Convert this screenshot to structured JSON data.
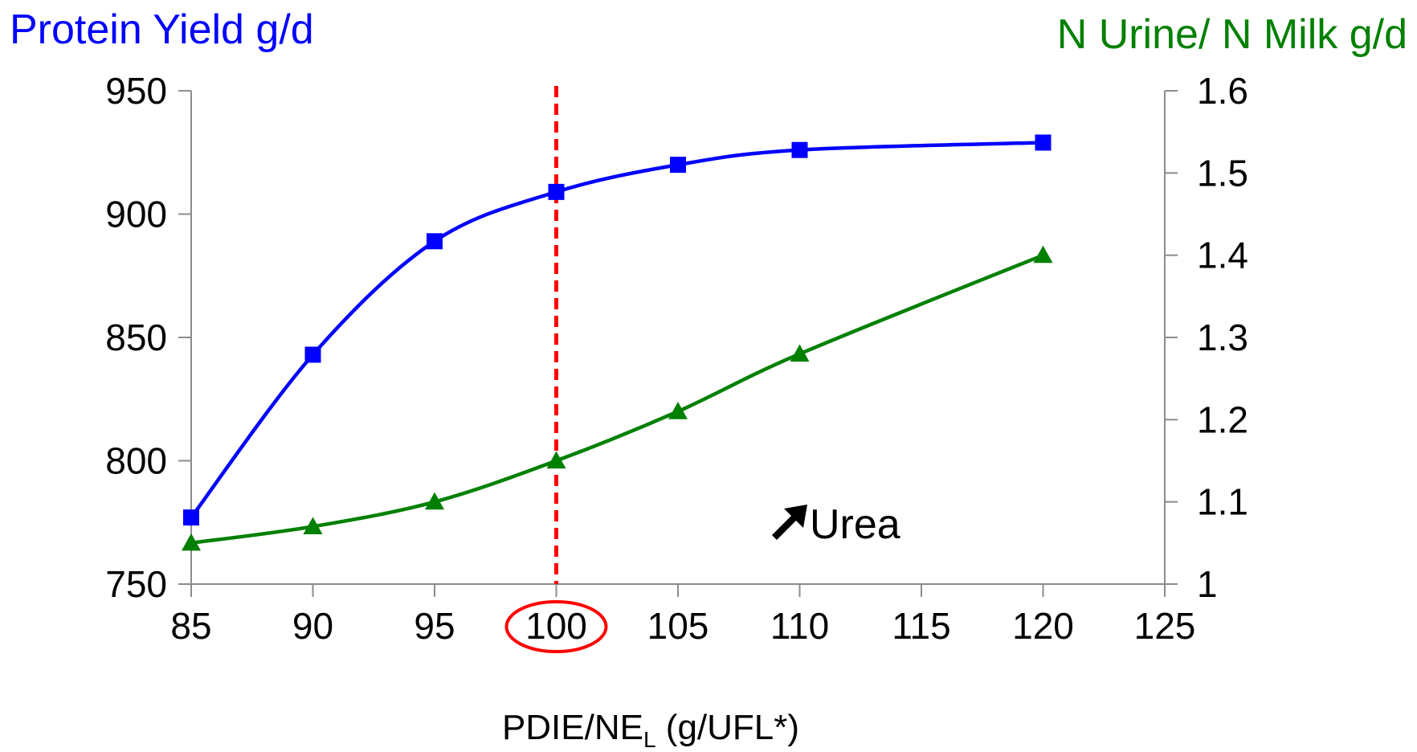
{
  "chart_data": {
    "type": "line",
    "x_values": [
      85,
      90,
      95,
      100,
      105,
      110,
      120
    ],
    "x_ticks": [
      "85",
      "90",
      "95",
      "100",
      "105",
      "110",
      "115",
      "120",
      "125"
    ],
    "xlim": [
      85,
      125
    ],
    "x_label": {
      "main": "PDIE/NE",
      "sub": "L",
      "suffix": " (g/UFL*)"
    },
    "highlighted_x_tick": "100",
    "left_axis": {
      "title": "Protein Yield g/d",
      "ticks": [
        "950",
        "900",
        "850",
        "800",
        "750"
      ],
      "ylim": [
        750,
        950
      ],
      "color": "#0000ff"
    },
    "right_axis": {
      "title": "N Urine/  N Milk g/d",
      "ticks": [
        "1.6",
        "1.5",
        "1.4",
        "1.3",
        "1.2",
        "1.1",
        "1"
      ],
      "ylim": [
        1.0,
        1.6
      ],
      "color": "#008000"
    },
    "series": [
      {
        "name": "Protein Yield g/d",
        "axis": "left",
        "marker": "square",
        "color": "#0000ff",
        "x": [
          85,
          90,
          95,
          100,
          105,
          110,
          120
        ],
        "values": [
          777,
          843,
          889,
          909,
          920,
          926,
          929
        ]
      },
      {
        "name": "N Urine/  N Milk g/d",
        "axis": "right",
        "marker": "triangle",
        "color": "#008000",
        "x": [
          85,
          90,
          95,
          100,
          105,
          110,
          120
        ],
        "values": [
          1.05,
          1.07,
          1.1,
          1.15,
          1.21,
          1.28,
          1.4
        ]
      }
    ],
    "reference_line": {
      "x": 100,
      "color": "#ff0000",
      "style": "dashed"
    },
    "annotation": {
      "text": "Urea",
      "icon": "arrow-up-right-icon"
    },
    "grid": false
  }
}
